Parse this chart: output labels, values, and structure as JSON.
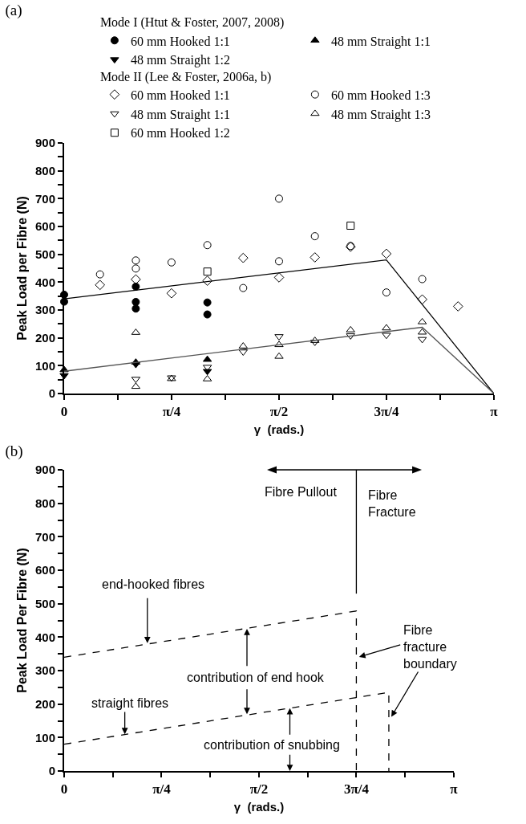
{
  "chart_data": [
    {
      "type": "scatter",
      "title": "(a)",
      "xlabel": "γ  (rads.)",
      "ylabel": "Peak Load per Fibre (N)",
      "legend_title": [
        "Mode I (Htut & Foster, 2007, 2008)",
        "Mode II (Lee & Foster, 2006a, b)"
      ],
      "legend": "top",
      "grid": false,
      "xlim": [
        0,
        3.142
      ],
      "ylim": [
        0,
        900
      ],
      "xticks": [
        {
          "value": 0,
          "label": "0"
        },
        {
          "value": 0.393,
          "label": null
        },
        {
          "value": 0.785,
          "label": "π/4"
        },
        {
          "value": 1.178,
          "label": null
        },
        {
          "value": 1.571,
          "label": "π/2"
        },
        {
          "value": 1.963,
          "label": null
        },
        {
          "value": 2.356,
          "label": "3π/4"
        },
        {
          "value": 2.749,
          "label": null
        },
        {
          "value": 3.142,
          "label": "π"
        }
      ],
      "yticks": [
        0,
        {
          "value": 50,
          "label": null
        },
        100,
        {
          "value": 150,
          "label": null
        },
        200,
        {
          "value": 250,
          "label": null
        },
        300,
        {
          "value": 350,
          "label": null
        },
        400,
        {
          "value": 450,
          "label": null
        },
        500,
        {
          "value": 550,
          "label": null
        },
        600,
        {
          "value": 650,
          "label": null
        },
        700,
        {
          "value": 750,
          "label": null
        },
        800,
        {
          "value": 850,
          "label": null
        },
        900
      ],
      "series": [
        {
          "name": "60 mm Hooked 1:1",
          "marker": "circle",
          "color": "#000000",
          "x": [
            0,
            0,
            0.524,
            0.524,
            0.524,
            1.047,
            1.047
          ],
          "values": [
            355,
            330,
            384,
            329,
            305,
            327,
            284
          ]
        },
        {
          "name": "48 mm Straight 1:1",
          "marker": "triangle-up",
          "color": "#000000",
          "x": [
            0,
            0.524,
            1.047
          ],
          "values": [
            85,
            112,
            122
          ]
        },
        {
          "name": "48 mm Straight 1:2",
          "marker": "triangle-down",
          "color": "#000000",
          "x": [
            0,
            0.524,
            1.047
          ],
          "values": [
            65,
            105,
            80
          ]
        },
        {
          "name": "60 mm Hooked 1:1",
          "marker": "diamond-open",
          "color": "#000000",
          "x": [
            0.262,
            0.524,
            0.785,
            1.047,
            1.309,
            1.571,
            1.833,
            2.094,
            2.356,
            2.618,
            2.88
          ],
          "values": [
            390,
            410,
            360,
            405,
            487,
            417,
            489,
            527,
            502,
            338,
            313
          ]
        },
        {
          "name": "60 mm Hooked 1:3",
          "marker": "circle-open",
          "color": "#000000",
          "x": [
            0.262,
            0.524,
            0.524,
            0.785,
            1.047,
            1.309,
            1.571,
            1.571,
            1.833,
            2.094,
            2.356,
            2.618
          ],
          "values": [
            428,
            478,
            449,
            471,
            533,
            379,
            700,
            475,
            565,
            530,
            363,
            411
          ]
        },
        {
          "name": "48 mm Straight 1:1",
          "marker": "triangle-down-open",
          "color": "#000000",
          "x": [
            0.524,
            0.785,
            1.047,
            1.309,
            1.571,
            1.833,
            2.094,
            2.356,
            2.618
          ],
          "values": [
            52,
            57,
            95,
            150,
            205,
            185,
            208,
            210,
            195
          ]
        },
        {
          "name": "48 mm Straight 1:3",
          "marker": "triangle-up-open",
          "color": "#000000",
          "x": [
            0.524,
            0.524,
            0.785,
            1.047,
            1.309,
            1.571,
            1.571,
            1.833,
            2.094,
            2.356,
            2.618,
            2.618
          ],
          "values": [
            219,
            25,
            53,
            52,
            170,
            175,
            133,
            190,
            228,
            235,
            257,
            220
          ]
        },
        {
          "name": "60 mm Hooked 1:2",
          "marker": "square-open",
          "color": "#000000",
          "x": [
            1.047,
            2.094
          ],
          "values": [
            438,
            603
          ]
        },
        {
          "type": "line",
          "line_style": "solid",
          "color": "#000000",
          "x": [
            0,
            2.356,
            3.142
          ],
          "values": [
            340,
            480,
            0
          ]
        },
        {
          "type": "line",
          "line_style": "solid",
          "color": "#555555",
          "x": [
            0,
            2.618,
            3.142
          ],
          "values": [
            80,
            238,
            0
          ]
        }
      ]
    },
    {
      "type": "line",
      "title": "(b)",
      "xlabel": "γ  (rads.)",
      "ylabel": "Peak Load Per Fibre (N)",
      "grid": false,
      "xlim": [
        0,
        3.142
      ],
      "ylim": [
        0,
        900
      ],
      "xticks": [
        {
          "value": 0,
          "label": "0"
        },
        {
          "value": 0.393,
          "label": null
        },
        {
          "value": 0.785,
          "label": "π/4"
        },
        {
          "value": 1.178,
          "label": null
        },
        {
          "value": 1.571,
          "label": "π/2"
        },
        {
          "value": 1.963,
          "label": null
        },
        {
          "value": 2.356,
          "label": "3π/4"
        },
        {
          "value": 2.749,
          "label": null
        },
        {
          "value": 3.142,
          "label": "π"
        }
      ],
      "yticks": [
        0,
        {
          "value": 50,
          "label": null
        },
        100,
        {
          "value": 150,
          "label": null
        },
        200,
        {
          "value": 250,
          "label": null
        },
        300,
        {
          "value": 350,
          "label": null
        },
        400,
        {
          "value": 450,
          "label": null
        },
        500,
        {
          "value": 550,
          "label": null
        },
        600,
        {
          "value": 650,
          "label": null
        },
        700,
        {
          "value": 750,
          "label": null
        },
        800,
        {
          "value": 850,
          "label": null
        },
        900
      ],
      "series": [
        {
          "line_style": "dashed",
          "color": "#000000",
          "x": [
            0,
            2.356,
            2.356
          ],
          "values": [
            340,
            478,
            0
          ]
        },
        {
          "line_style": "dashed",
          "color": "#000000",
          "x": [
            0,
            2.618,
            2.618
          ],
          "values": [
            80,
            235,
            0
          ]
        },
        {
          "line_style": "solid",
          "color": "#000000",
          "x": [
            2.356,
            2.356
          ],
          "values": [
            530,
            900
          ]
        }
      ],
      "annotations": [
        "Fibre Pullout",
        "Fibre\nFracture",
        {
          "text": "end-hooked fibres",
          "x": 0.671,
          "y": 382
        },
        {
          "text": "contribution of end hook",
          "x": 1.474,
          "y": 425
        },
        {
          "text": "straight fibres",
          "x": 0.489,
          "y": 110
        },
        {
          "text": "contribution of snubbing",
          "x": 1.82,
          "y": 188
        },
        {
          "text": "Fibre\nfracture\nboundary",
          "x": 2.378,
          "y": 341
        }
      ]
    }
  ]
}
